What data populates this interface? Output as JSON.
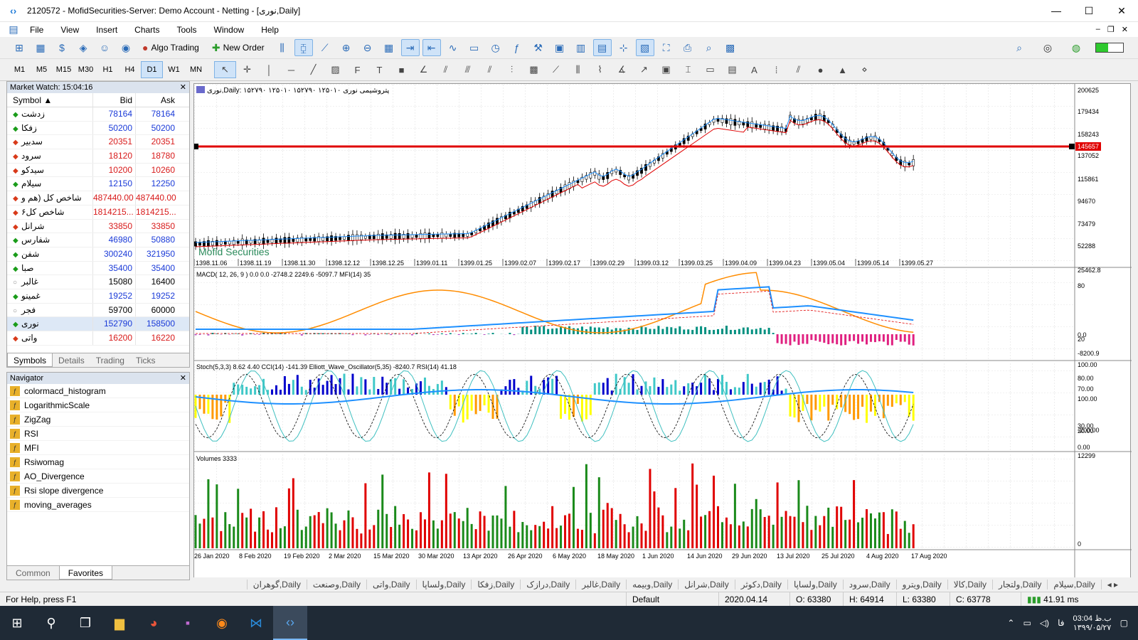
{
  "window": {
    "title": "2120572 - MofidSecurities-Server: Demo Account - Netting - [نوری,Daily]"
  },
  "menu": [
    "File",
    "View",
    "Insert",
    "Charts",
    "Tools",
    "Window",
    "Help"
  ],
  "toolbar": {
    "algo_trading": "Algo Trading",
    "new_order": "New Order"
  },
  "timeframes": [
    "M1",
    "M5",
    "M15",
    "M30",
    "H1",
    "H4",
    "D1",
    "W1",
    "MN"
  ],
  "active_timeframe": "D1",
  "market_watch": {
    "title": "Market Watch: 15:04:16",
    "headers": {
      "symbol": "Symbol",
      "bid": "Bid",
      "ask": "Ask"
    },
    "rows": [
      {
        "dir": "up",
        "symbol": "زدشت",
        "bid": "78164",
        "ask": "78164"
      },
      {
        "dir": "up",
        "symbol": "زفکا",
        "bid": "50200",
        "ask": "50200"
      },
      {
        "dir": "dn",
        "symbol": "سدبیر",
        "bid": "20351",
        "ask": "20351"
      },
      {
        "dir": "dn",
        "symbol": "سرود",
        "bid": "18120",
        "ask": "18780"
      },
      {
        "dir": "dn",
        "symbol": "سیدکو",
        "bid": "10200",
        "ask": "10260"
      },
      {
        "dir": "up",
        "symbol": "سیلام",
        "bid": "12150",
        "ask": "12250"
      },
      {
        "dir": "dn",
        "symbol": "شاخص کل (هم و",
        "bid": "487440.00",
        "ask": "487440.00"
      },
      {
        "dir": "dn",
        "symbol": "شاخص کل۶",
        "bid": "1814215...",
        "ask": "1814215..."
      },
      {
        "dir": "dn",
        "symbol": "شرانل",
        "bid": "33850",
        "ask": "33850"
      },
      {
        "dir": "up",
        "symbol": "شفارس",
        "bid": "46980",
        "ask": "50880"
      },
      {
        "dir": "up",
        "symbol": "شفن",
        "bid": "300240",
        "ask": "321950"
      },
      {
        "dir": "up",
        "symbol": "صبا",
        "bid": "35400",
        "ask": "35400"
      },
      {
        "dir": "nt",
        "symbol": "غالبر",
        "bid": "15080",
        "ask": "16400"
      },
      {
        "dir": "up",
        "symbol": "غمینو",
        "bid": "19252",
        "ask": "19252"
      },
      {
        "dir": "nt",
        "symbol": "فجر",
        "bid": "59700",
        "ask": "60000"
      },
      {
        "dir": "up",
        "symbol": "نوری",
        "bid": "152790",
        "ask": "158500"
      },
      {
        "dir": "dn",
        "symbol": "واتی",
        "bid": "16200",
        "ask": "16220"
      }
    ],
    "tabs": [
      "Symbols",
      "Details",
      "Trading",
      "Ticks"
    ]
  },
  "navigator": {
    "title": "Navigator",
    "items": [
      "colormacd_histogram",
      "LogarithmicScale",
      "ZigZag",
      "RSI",
      "MFI",
      "Rsiwomag",
      "AO_Divergence",
      "Rsi slope divergence",
      "moving_averages"
    ],
    "tabs": [
      "Common",
      "Favorites"
    ]
  },
  "chart": {
    "header": "نوری,Daily: ۱۵۲۷۹۰ ۱۲۵۰۱۰ ۱۵۲۷۹۰ ۱۲۵۰۱۰ پتروشیمی نوری",
    "watermark": "Mofid Securities",
    "price_axis": [
      "200625",
      "179434",
      "158243",
      "137052",
      "115861",
      "94670",
      "73479",
      "52288"
    ],
    "current_price": "145657",
    "date_labels": [
      "1398.11.06",
      "1398.11.19",
      "1398.11.30",
      "1398.12.12",
      "1398.12.25",
      "1399.01.11",
      "1399.01.25",
      "1399.02.07",
      "1399.02.17",
      "1399.02.29",
      "1399.03.12",
      "1399.03.25",
      "1399.04.09",
      "1399.04.23",
      "1399.05.04",
      "1399.05.14",
      "1399.05.27"
    ],
    "macd_label": "MACD( 12, 26, 9 ) 0.0 0.0 -2748.2 2249.6 -5097.7 MFI(14) 35",
    "macd_axis": [
      "25462.8",
      "80",
      "0.0",
      "20",
      "-8200.9"
    ],
    "stoch_label": "Stoch(5,3,3) 8.62 4.40 CCI(14) -141.39 Elliott_Wave_Oscillator(5,35) -8240.7 RSI(14) 41.18",
    "stoch_axis": [
      "100.00",
      "80.00",
      "70.00",
      "100.00",
      "30.00",
      "20.00",
      "-200.00",
      "0.00"
    ],
    "volume_label": "Volumes 3333",
    "volume_axis": [
      "12299",
      "0"
    ],
    "gregorian_dates": [
      "26 Jan 2020",
      "8 Feb 2020",
      "19 Feb 2020",
      "2 Mar 2020",
      "15 Mar 2020",
      "30 Mar 2020",
      "13 Apr 2020",
      "26 Apr 2020",
      "6 May 2020",
      "18 May 2020",
      "1 Jun 2020",
      "14 Jun 2020",
      "29 Jun 2020",
      "13 Jul 2020",
      "25 Jul 2020",
      "4 Aug 2020",
      "17 Aug 2020"
    ]
  },
  "chart_tabs": [
    "سیلام,Daily",
    "ولتجار,Daily",
    "کالا,Daily",
    "ویترو,Daily",
    "سرود,Daily",
    "ولساپا,Daily",
    "دکوثر,Daily",
    "شرانل,Daily",
    "وبیمه,Daily",
    "غالبر,Daily",
    "درازک,Daily",
    "زفکا,Daily",
    "ولساپا,Daily",
    "واتی,Daily",
    "وصنعت,Daily",
    "گوهران,Daily"
  ],
  "status": {
    "help": "For Help, press F1",
    "profile": "Default",
    "datetime": "2020.04.14 00:00",
    "open": "O: 63380",
    "high": "H: 64914",
    "low": "L: 63380",
    "close": "C: 63778",
    "ping": "41.91 ms"
  },
  "taskbar": {
    "time": "03:04 ب.ظ",
    "date": "۱۳۹۹/۰۵/۲۷",
    "lang": "فا"
  }
}
